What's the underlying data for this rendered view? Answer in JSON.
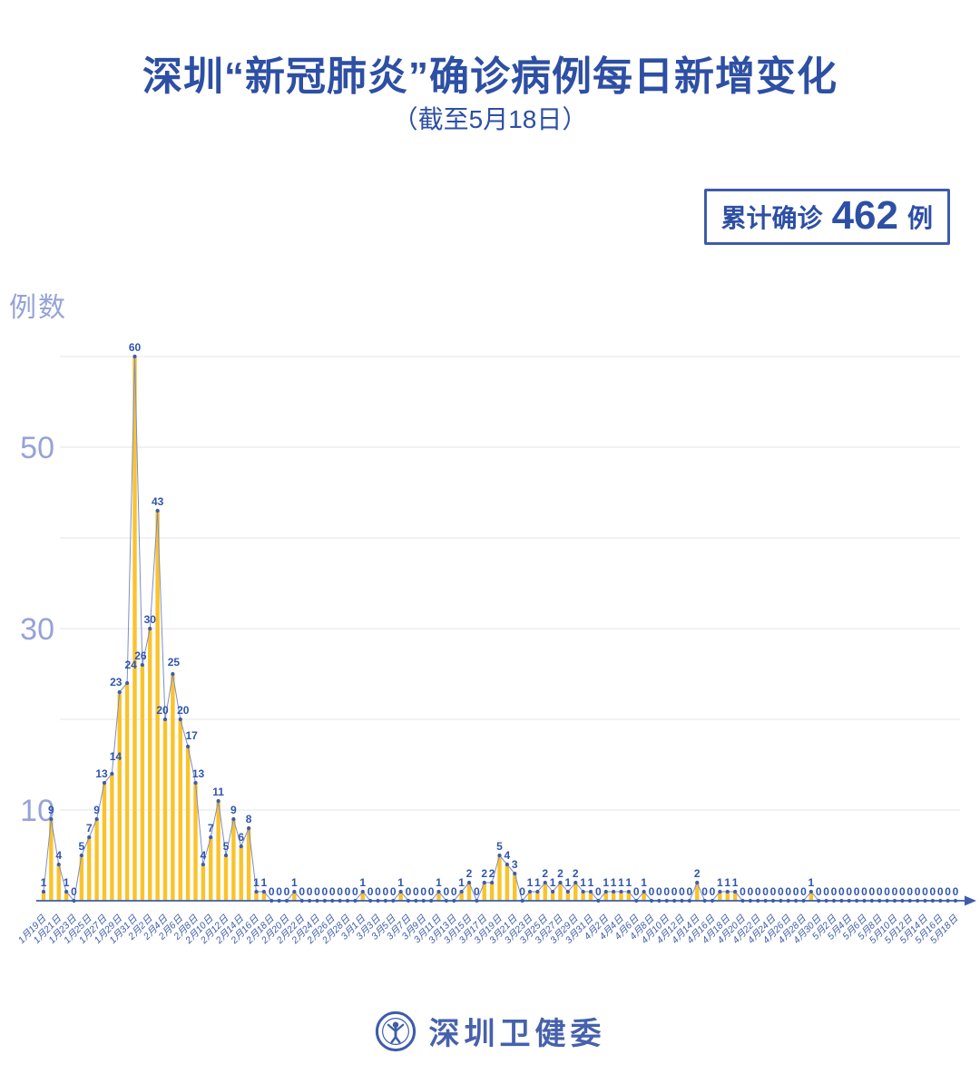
{
  "title": "深圳“新冠肺炎”确诊病例每日新增变化",
  "subtitle": "（截至5月18日）",
  "badge": {
    "prefix": "累计确诊",
    "value": "462",
    "suffix": "例"
  },
  "y_axis_label": "例数",
  "footer": {
    "brand": "深圳卫健委"
  },
  "chart_data": {
    "type": "bar",
    "title": "深圳“新冠肺炎”确诊病例每日新增变化（截至5月18日）",
    "xlabel": "",
    "ylabel": "例数",
    "ylim": [
      0,
      60
    ],
    "gridlines": [
      10,
      20,
      30,
      40,
      50,
      60
    ],
    "y_ticks_labeled": [
      10,
      30,
      50
    ],
    "x_tick_every": 2,
    "legend": "none",
    "colors": {
      "bar_yellow": "#FBC32B",
      "line_blue": "#7b8ecb",
      "point_blue": "#3d5cab",
      "value_label_blue": "#2f55ad",
      "axis_blue": "#3d5cab",
      "grid_gray": "#e6e6ee",
      "y_tick_text": "#96a3d7",
      "title_blue": "#2d4fa4"
    },
    "categories": [
      "1月19日",
      "1月20日",
      "1月21日",
      "1月22日",
      "1月23日",
      "1月24日",
      "1月25日",
      "1月26日",
      "1月27日",
      "1月28日",
      "1月29日",
      "1月30日",
      "1月31日",
      "2月1日",
      "2月2日",
      "2月3日",
      "2月4日",
      "2月5日",
      "2月6日",
      "2月7日",
      "2月8日",
      "2月9日",
      "2月10日",
      "2月11日",
      "2月12日",
      "2月13日",
      "2月14日",
      "2月15日",
      "2月16日",
      "2月17日",
      "2月18日",
      "2月19日",
      "2月20日",
      "2月21日",
      "2月22日",
      "2月23日",
      "2月24日",
      "2月25日",
      "2月26日",
      "2月27日",
      "2月28日",
      "2月29日",
      "3月1日",
      "3月2日",
      "3月3日",
      "3月4日",
      "3月5日",
      "3月6日",
      "3月7日",
      "3月8日",
      "3月9日",
      "3月10日",
      "3月11日",
      "3月12日",
      "3月13日",
      "3月14日",
      "3月15日",
      "3月16日",
      "3月17日",
      "3月18日",
      "3月19日",
      "3月20日",
      "3月21日",
      "3月22日",
      "3月23日",
      "3月24日",
      "3月25日",
      "3月26日",
      "3月27日",
      "3月28日",
      "3月29日",
      "3月30日",
      "3月31日",
      "4月1日",
      "4月2日",
      "4月3日",
      "4月4日",
      "4月5日",
      "4月6日",
      "4月7日",
      "4月8日",
      "4月9日",
      "4月10日",
      "4月11日",
      "4月12日",
      "4月13日",
      "4月14日",
      "4月15日",
      "4月16日",
      "4月17日",
      "4月18日",
      "4月19日",
      "4月20日",
      "4月21日",
      "4月22日",
      "4月23日",
      "4月24日",
      "4月25日",
      "4月26日",
      "4月27日",
      "4月28日",
      "4月29日",
      "4月30日",
      "5月1日",
      "5月2日",
      "5月3日",
      "5月4日",
      "5月5日",
      "5月6日",
      "5月7日",
      "5月8日",
      "5月9日",
      "5月10日",
      "5月11日",
      "5月12日",
      "5月13日",
      "5月14日",
      "5月15日",
      "5月16日",
      "5月17日",
      "5月18日"
    ],
    "values": [
      1,
      9,
      4,
      1,
      0,
      5,
      7,
      9,
      13,
      14,
      23,
      24,
      60,
      26,
      30,
      43,
      20,
      25,
      20,
      17,
      13,
      4,
      7,
      11,
      5,
      9,
      6,
      8,
      1,
      1,
      0,
      0,
      0,
      1,
      0,
      0,
      0,
      0,
      0,
      0,
      0,
      0,
      1,
      0,
      0,
      0,
      0,
      1,
      0,
      0,
      0,
      0,
      1,
      0,
      0,
      1,
      2,
      0,
      2,
      2,
      5,
      4,
      3,
      0,
      1,
      1,
      2,
      1,
      2,
      1,
      2,
      1,
      1,
      0,
      1,
      1,
      1,
      1,
      0,
      1,
      0,
      0,
      0,
      0,
      0,
      0,
      2,
      0,
      0,
      1,
      1,
      1,
      0,
      0,
      0,
      0,
      0,
      0,
      0,
      0,
      0,
      1,
      0,
      0,
      0,
      0,
      0,
      0,
      0,
      0,
      0,
      0,
      0,
      0,
      0,
      0,
      0,
      0,
      0,
      0,
      0
    ]
  }
}
